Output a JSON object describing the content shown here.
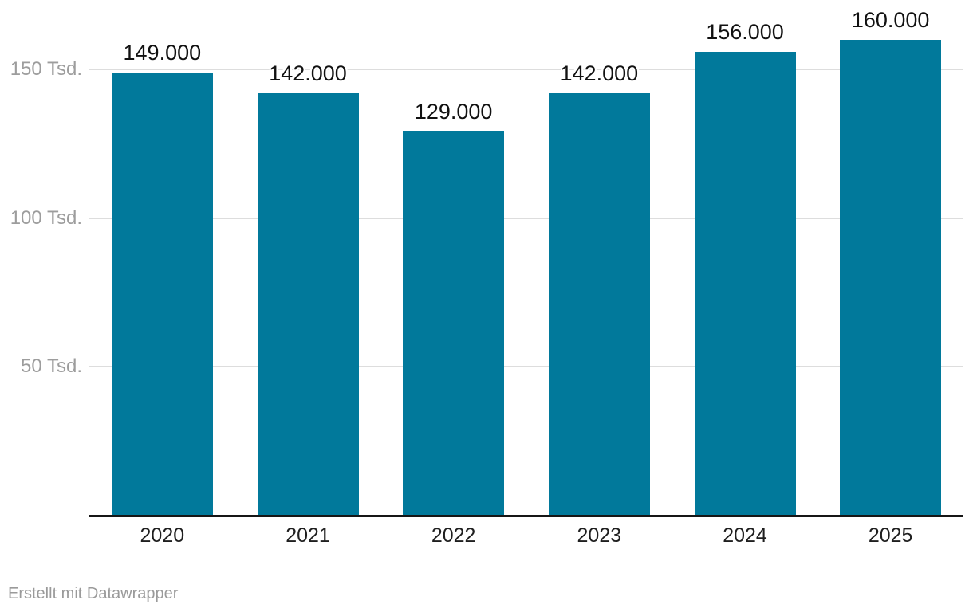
{
  "chart_data": {
    "type": "bar",
    "title": "",
    "categories": [
      "2020",
      "2021",
      "2022",
      "2023",
      "2024",
      "2025"
    ],
    "values": [
      149000,
      142000,
      129000,
      142000,
      156000,
      160000
    ],
    "value_labels": [
      "149.000",
      "142.000",
      "129.000",
      "142.000",
      "156.000",
      "160.000"
    ],
    "xlabel": "",
    "ylabel": "",
    "y_axis": {
      "ticks": [
        {
          "value": 50000,
          "label": "50 Tsd."
        },
        {
          "value": 100000,
          "label": "100 Tsd."
        },
        {
          "value": 150000,
          "label": "150 Tsd."
        }
      ],
      "ylim": [
        0,
        173000
      ],
      "grid": true
    },
    "legend": null,
    "colors": {
      "bar": "#01799b",
      "grid": "#dddddd",
      "axis_line": "#161616",
      "tick_label": "#9d9d9d",
      "value_label": "#111111",
      "category_label": "#1f1f1f"
    }
  },
  "footer": {
    "prefix": "Erstellt mit ",
    "link_label": "Datawrapper",
    "color": "#9a9a9a"
  }
}
